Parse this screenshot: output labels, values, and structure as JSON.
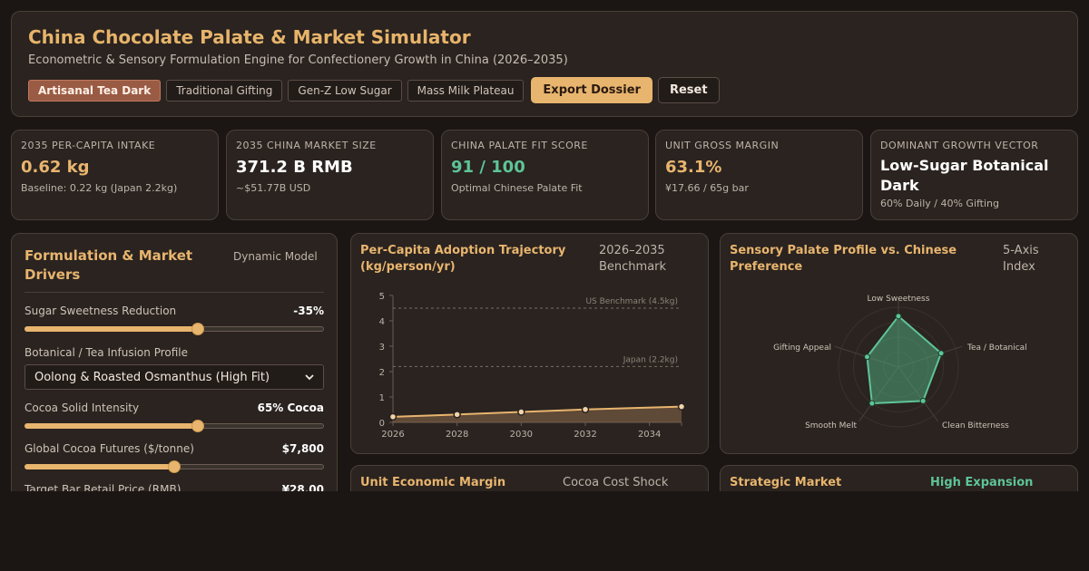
{
  "header": {
    "title": "China Chocolate Palate & Market Simulator",
    "subtitle": "Econometric & Sensory Formulation Engine for Confectionery Growth in China (2026–2035)",
    "presets": [
      "Artisanal Tea Dark",
      "Traditional Gifting",
      "Gen-Z Low Sugar",
      "Mass Milk Plateau"
    ],
    "active_preset": "Artisanal Tea Dark",
    "export_label": "Export Dossier",
    "reset_label": "Reset"
  },
  "kpis": [
    {
      "label": "2035 Per-Capita Intake",
      "value": "0.62 kg",
      "sub": "Baseline: 0.22 kg (Japan 2.2kg)"
    },
    {
      "label": "2035 China Market Size",
      "value": "371.2 B RMB",
      "sub": "~$51.77B USD"
    },
    {
      "label": "China Palate Fit Score",
      "value": "91 / 100",
      "sub": "Optimal Chinese Palate Fit"
    },
    {
      "label": "Unit Gross Margin",
      "value": "63.1%",
      "sub": "¥17.66 / 65g bar"
    },
    {
      "label": "Dominant Growth Vector",
      "value": "Low-Sugar Botanical Dark",
      "sub": "60% Daily / 40% Gifting"
    }
  ],
  "colors": {
    "accent": "#e8b56e",
    "positive": "#5ec496",
    "active_preset": "#9a5b45"
  },
  "drivers": {
    "title": "Formulation & Market Drivers",
    "badge": "Dynamic Model",
    "sugar": {
      "label": "Sugar Sweetness Reduction",
      "value": "-35%",
      "level": 0.58
    },
    "infusion": {
      "label": "Botanical / Tea Infusion Profile",
      "selected": "Oolong & Roasted Osmanthus (High Fit)"
    },
    "cocoa": {
      "label": "Cocoa Solid Intensity",
      "value": "65% Cocoa",
      "level": 0.58
    },
    "futures": {
      "label": "Global Cocoa Futures ($/tonne)",
      "value": "$7,800",
      "level": 0.5
    },
    "price": {
      "label": "Target Bar Retail Price (RMB)",
      "value": "¥28.00"
    }
  },
  "trajectory": {
    "title": "Per-Capita Adoption Trajectory (kg/person/yr)",
    "meta": "2026–2035 Benchmark"
  },
  "radar": {
    "title": "Sensory Palate Profile vs. Chinese Preference",
    "meta": "5-Axis Index"
  },
  "unit": {
    "title": "Unit Economic Margin",
    "meta": "Cocoa Cost Shock"
  },
  "strategy": {
    "title": "Strategic Market",
    "meta": "High Expansion"
  },
  "chart_data": [
    {
      "type": "line",
      "title": "Per-Capita Adoption Trajectory (kg/person/yr)",
      "x": [
        2026,
        2028,
        2030,
        2032,
        2035
      ],
      "x_ticks": [
        "2026",
        "2028",
        "2030",
        "2032",
        "2034"
      ],
      "series": [
        {
          "values": [
            0.22,
            0.31,
            0.41,
            0.51,
            0.62
          ]
        }
      ],
      "reference_lines": [
        {
          "label": "US Benchmark (4.5kg)",
          "value": 4.5
        },
        {
          "label": "Japan (2.2kg)",
          "value": 2.2
        }
      ],
      "ylim": [
        0,
        5
      ],
      "y_ticks": [
        0,
        1,
        2,
        3,
        4,
        5
      ],
      "xlim": [
        2026,
        2035
      ]
    },
    {
      "type": "radar",
      "title": "Sensory Palate Profile vs. Chinese Preference",
      "axes": [
        "Low Sweetness",
        "Tea / Botanical",
        "Clean Bitterness",
        "Smooth Melt",
        "Gifting Appeal"
      ],
      "values": [
        85,
        75,
        70,
        75,
        55
      ],
      "max": 100
    }
  ]
}
